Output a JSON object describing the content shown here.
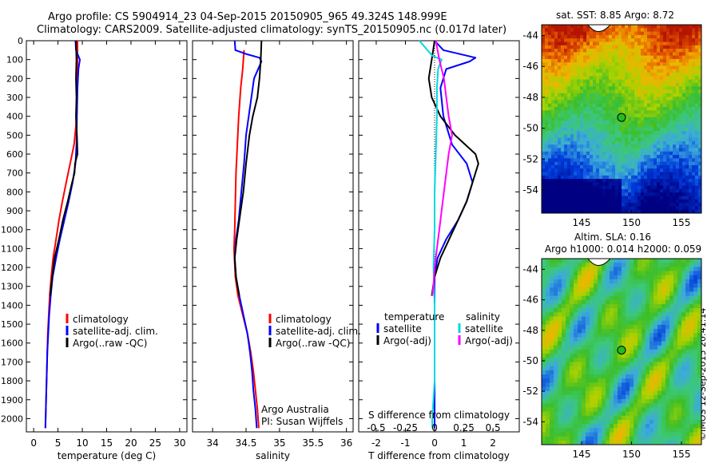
{
  "header": {
    "line1": "Argo profile: CS 5904914_23 04-Sep-2015 20150905_965 49.324S 148.999E",
    "line2": "Climatology: CARS2009. Satellite-adjusted climatology: synTS_20150905.nc (0.017d later)"
  },
  "credit": "©IMOS 12-Sep-2015 20:41:14",
  "colors": {
    "climatology": "#ff0000",
    "satellite": "#0000ff",
    "argo": "#000000",
    "salinity_sat": "#00d8e0",
    "salinity_argo": "#ff00ff"
  },
  "chart_data": [
    {
      "type": "line",
      "id": "temperature",
      "xlabel": "temperature (deg C)",
      "ylabel": "",
      "xlim": [
        -1.5,
        31.5
      ],
      "ylim": [
        2070,
        0
      ],
      "xticks": [
        0,
        5,
        10,
        15,
        20,
        25,
        30
      ],
      "yticks": [
        0,
        100,
        200,
        300,
        400,
        500,
        600,
        700,
        800,
        900,
        1000,
        1100,
        1200,
        1300,
        1400,
        1500,
        1600,
        1700,
        1800,
        1900,
        2000
      ],
      "legend": [
        "climatology",
        "satellite-adj. clim.",
        "Argo(..raw -QC)"
      ],
      "series": [
        {
          "name": "climatology",
          "color": "#ff0000",
          "points": [
            [
              9.0,
              0
            ],
            [
              9.0,
              100
            ],
            [
              8.9,
              300
            ],
            [
              8.7,
              450
            ],
            [
              8.3,
              550
            ],
            [
              7.5,
              650
            ],
            [
              6.7,
              750
            ],
            [
              5.9,
              850
            ],
            [
              5.2,
              950
            ],
            [
              4.6,
              1050
            ],
            [
              4.0,
              1150
            ],
            [
              3.6,
              1250
            ],
            [
              3.3,
              1350
            ],
            [
              3.1,
              1450
            ],
            [
              2.9,
              1550
            ],
            [
              2.8,
              1650
            ],
            [
              2.7,
              1750
            ],
            [
              2.6,
              1850
            ],
            [
              2.5,
              1950
            ],
            [
              2.4,
              2050
            ]
          ]
        },
        {
          "name": "satellite-adj. clim.",
          "color": "#0000ff",
          "points": [
            [
              8.6,
              0
            ],
            [
              8.7,
              50
            ],
            [
              9.5,
              100
            ],
            [
              9.2,
              150
            ],
            [
              9.0,
              250
            ],
            [
              8.9,
              400
            ],
            [
              8.8,
              550
            ],
            [
              8.6,
              650
            ],
            [
              8.0,
              750
            ],
            [
              7.2,
              850
            ],
            [
              6.3,
              950
            ],
            [
              5.4,
              1050
            ],
            [
              4.6,
              1150
            ],
            [
              3.9,
              1250
            ],
            [
              3.5,
              1350
            ],
            [
              3.2,
              1450
            ],
            [
              3.0,
              1550
            ],
            [
              2.8,
              1650
            ],
            [
              2.7,
              1750
            ],
            [
              2.6,
              1850
            ],
            [
              2.5,
              1950
            ],
            [
              2.4,
              2050
            ]
          ]
        },
        {
          "name": "Argo(..raw -QC)",
          "color": "#000000",
          "points": [
            [
              8.7,
              0
            ],
            [
              8.8,
              100
            ],
            [
              8.7,
              200
            ],
            [
              8.8,
              300
            ],
            [
              8.7,
              400
            ],
            [
              8.9,
              500
            ],
            [
              9.0,
              600
            ],
            [
              8.5,
              650
            ],
            [
              8.4,
              700
            ],
            [
              7.9,
              750
            ],
            [
              7.0,
              850
            ],
            [
              6.0,
              950
            ],
            [
              5.2,
              1050
            ],
            [
              4.3,
              1150
            ],
            [
              3.8,
              1250
            ],
            [
              3.4,
              1350
            ]
          ]
        }
      ]
    },
    {
      "type": "line",
      "id": "salinity",
      "xlabel": "salinity",
      "ylabel": "",
      "xlim": [
        33.7,
        36.1
      ],
      "ylim": [
        2070,
        0
      ],
      "xticks": [
        34,
        34.5,
        35,
        35.5,
        36
      ],
      "legend": [
        "climatology",
        "satellite-adj. clim.",
        "Argo(..raw -QC)"
      ],
      "annotation": [
        "Argo Australia",
        "PI: Susan Wijffels"
      ],
      "series": [
        {
          "name": "climatology",
          "color": "#ff0000",
          "points": [
            [
              34.47,
              50
            ],
            [
              34.45,
              150
            ],
            [
              34.42,
              250
            ],
            [
              34.39,
              400
            ],
            [
              34.37,
              550
            ],
            [
              34.35,
              700
            ],
            [
              34.34,
              850
            ],
            [
              34.33,
              1000
            ],
            [
              34.32,
              1100
            ],
            [
              34.34,
              1250
            ],
            [
              34.38,
              1350
            ],
            [
              34.45,
              1450
            ],
            [
              34.52,
              1550
            ],
            [
              34.57,
              1650
            ],
            [
              34.61,
              1750
            ],
            [
              34.64,
              1850
            ],
            [
              34.67,
              1950
            ],
            [
              34.69,
              2050
            ]
          ]
        },
        {
          "name": "satellite-adj. clim.",
          "color": "#0000ff",
          "points": [
            [
              34.33,
              0
            ],
            [
              34.34,
              50
            ],
            [
              34.5,
              70
            ],
            [
              34.7,
              90
            ],
            [
              34.73,
              110
            ],
            [
              34.62,
              200
            ],
            [
              34.56,
              350
            ],
            [
              34.5,
              500
            ],
            [
              34.47,
              650
            ],
            [
              34.43,
              800
            ],
            [
              34.39,
              950
            ],
            [
              34.35,
              1050
            ],
            [
              34.33,
              1150
            ],
            [
              34.35,
              1250
            ],
            [
              34.4,
              1350
            ],
            [
              34.46,
              1450
            ],
            [
              34.52,
              1550
            ],
            [
              34.56,
              1650
            ],
            [
              34.59,
              1750
            ],
            [
              34.61,
              1850
            ],
            [
              34.64,
              1950
            ],
            [
              34.66,
              2050
            ]
          ]
        },
        {
          "name": "Argo(..raw -QC)",
          "color": "#000000",
          "points": [
            [
              34.73,
              0
            ],
            [
              34.72,
              100
            ],
            [
              34.7,
              200
            ],
            [
              34.67,
              300
            ],
            [
              34.6,
              400
            ],
            [
              34.55,
              500
            ],
            [
              34.5,
              650
            ],
            [
              34.46,
              800
            ],
            [
              34.4,
              950
            ],
            [
              34.36,
              1050
            ],
            [
              34.33,
              1150
            ],
            [
              34.35,
              1250
            ],
            [
              34.4,
              1350
            ]
          ]
        }
      ]
    },
    {
      "type": "line",
      "id": "difference",
      "xlabel": "T difference from climatology",
      "xlabel_top": "S difference from climatology",
      "ylabel": "",
      "xlim": [
        -2.6,
        2.9
      ],
      "xlim_top": [
        -0.65,
        0.725
      ],
      "ylim": [
        2070,
        0
      ],
      "xticks": [
        -2,
        -1,
        0,
        1,
        2
      ],
      "xticks_top": [
        -0.5,
        -0.25,
        0,
        0.25,
        0.5
      ],
      "legend_temperature": {
        "title": "temperature",
        "items": [
          "satellite",
          "Argo(-adj)"
        ]
      },
      "legend_salinity": {
        "title": "salinity",
        "items": [
          "satellite",
          "Argo(-adj)"
        ]
      },
      "series": [
        {
          "name": "T satellite",
          "color": "#0000ff",
          "points": [
            [
              0,
              0
            ],
            [
              0.3,
              50
            ],
            [
              1.4,
              90
            ],
            [
              1.2,
              110
            ],
            [
              0.4,
              150
            ],
            [
              0.2,
              250
            ],
            [
              0.3,
              400
            ],
            [
              0.6,
              550
            ],
            [
              1.1,
              650
            ],
            [
              1.3,
              750
            ],
            [
              1.1,
              850
            ],
            [
              0.8,
              950
            ],
            [
              0.4,
              1050
            ],
            [
              0.1,
              1150
            ],
            [
              0,
              1250
            ],
            [
              0,
              1350
            ],
            [
              0,
              1450
            ],
            [
              0,
              2050
            ]
          ]
        },
        {
          "name": "T Argo(-adj)",
          "color": "#000000",
          "points": [
            [
              0,
              0
            ],
            [
              -0.1,
              100
            ],
            [
              -0.2,
              200
            ],
            [
              -0.1,
              300
            ],
            [
              0.2,
              400
            ],
            [
              0.7,
              500
            ],
            [
              1.4,
              600
            ],
            [
              1.5,
              650
            ],
            [
              1.3,
              750
            ],
            [
              1.1,
              850
            ],
            [
              0.8,
              950
            ],
            [
              0.5,
              1050
            ],
            [
              0.2,
              1150
            ],
            [
              0,
              1250
            ],
            [
              -0.1,
              1350
            ]
          ]
        },
        {
          "name": "S satellite",
          "color": "#00d8e0",
          "points": [
            [
              -0.13,
              0
            ],
            [
              -0.02,
              80
            ],
            [
              0.06,
              100
            ],
            [
              0.03,
              150
            ],
            [
              0.02,
              250
            ],
            [
              0.02,
              400
            ],
            [
              0.01,
              600
            ],
            [
              0.0,
              800
            ],
            [
              0.0,
              1000
            ],
            [
              -0.01,
              1200
            ],
            [
              0.0,
              1400
            ],
            [
              0.0,
              1600
            ],
            [
              0.0,
              1800
            ],
            [
              -0.02,
              2000
            ],
            [
              -0.02,
              2050
            ]
          ]
        },
        {
          "name": "S Argo(-adj)",
          "color": "#ff00ff",
          "points": [
            [
              0.01,
              0
            ],
            [
              0.04,
              100
            ],
            [
              0.08,
              200
            ],
            [
              0.1,
              300
            ],
            [
              0.12,
              400
            ],
            [
              0.15,
              500
            ],
            [
              0.12,
              600
            ],
            [
              0.1,
              700
            ],
            [
              0.08,
              800
            ],
            [
              0.06,
              900
            ],
            [
              0.04,
              1000
            ],
            [
              0.02,
              1100
            ],
            [
              0.0,
              1200
            ],
            [
              -0.01,
              1300
            ],
            [
              -0.02,
              1350
            ]
          ]
        }
      ]
    },
    {
      "type": "heatmap",
      "id": "sst-map",
      "title": "sat. SST: 8.85  Argo: 8.72",
      "xlim": [
        141,
        157
      ],
      "ylim": [
        -55.5,
        -43.3
      ],
      "xticks": [
        145,
        150,
        155
      ],
      "yticks": [
        -44,
        -46,
        -48,
        -50,
        -52,
        -54
      ],
      "marker": {
        "lon": 149.0,
        "lat": -49.3
      }
    },
    {
      "type": "heatmap",
      "id": "sla-map",
      "title": "Altim. SLA: 0.16",
      "subtitle": "Argo h1000: 0.014  h2000: 0.059",
      "xlim": [
        141,
        157
      ],
      "ylim": [
        -55.5,
        -43.3
      ],
      "xticks": [
        145,
        150,
        155
      ],
      "yticks": [
        -44,
        -46,
        -48,
        -50,
        -52,
        -54
      ],
      "marker": {
        "lon": 149.0,
        "lat": -49.3
      }
    }
  ]
}
